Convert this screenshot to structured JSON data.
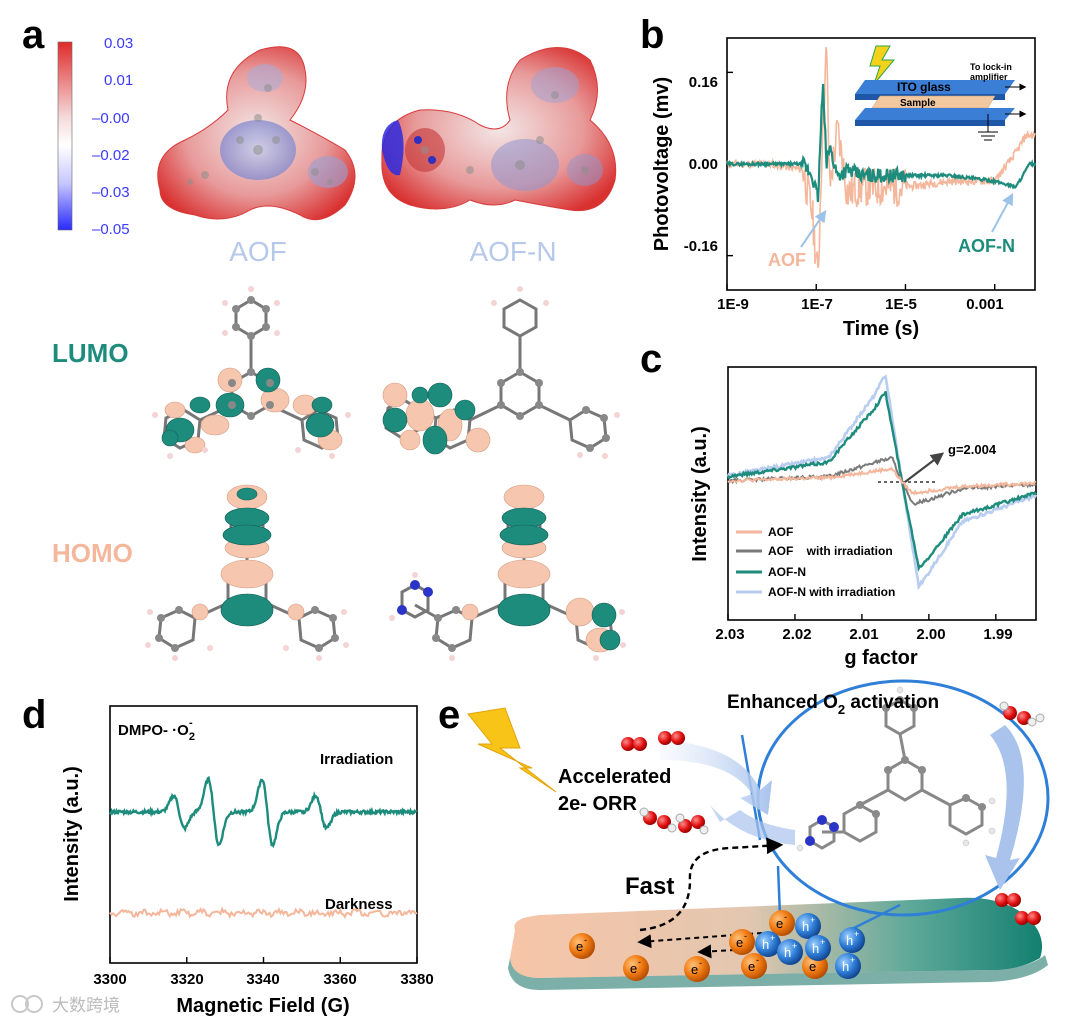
{
  "panels": {
    "a": "a",
    "b": "b",
    "c": "c",
    "d": "d",
    "e": "e"
  },
  "colors": {
    "aof": "#f4b79b",
    "aofn": "#1e8c7d",
    "aof_irr": "#7a7a7a",
    "aofn_irr": "#b9cdf0",
    "orb_teal": "#1e8c7d",
    "orb_peach": "#f7c6ae",
    "text_light_blue": "#b6c9ea",
    "mep_red": "#e02a2a",
    "mep_blue": "#3030ff"
  },
  "panel_a": {
    "colorbar_ticks": [
      "0.03",
      "0.01",
      "–0.00",
      "–0.02",
      "–0.03",
      "–0.05"
    ],
    "mep_labels": [
      "AOF",
      "AOF-N"
    ],
    "orbital_labels": {
      "lumo": "LUMO",
      "homo": "HOMO"
    }
  },
  "panel_b": {
    "ylabel": "Photovoltage (mv)",
    "xlabel": "Time (s)",
    "yticks": [
      "0.16",
      "0.00",
      "-0.16"
    ],
    "xticks": [
      "1E-9",
      "1E-7",
      "1E-5",
      "0.001"
    ],
    "series_labels": {
      "aof": "AOF",
      "aofn": "AOF-N"
    },
    "inset": {
      "ito": "ITO glass",
      "sample": "Sample",
      "lockin": "To lock-in",
      "amplifier": "amplifier"
    }
  },
  "panel_c": {
    "ylabel": "Intensity (a.u.)",
    "xlabel": "g factor",
    "xticks": [
      "2.03",
      "2.02",
      "2.01",
      "2.00",
      "1.99"
    ],
    "annotation": "g=2.004",
    "legend": [
      "AOF",
      "AOF    with irradiation",
      "AOF-N",
      "AOF-N with irradiation"
    ]
  },
  "panel_d": {
    "ylabel": "Intensity (a.u.)",
    "xlabel": "Magnetic Field (G)",
    "xticks": [
      "3300",
      "3320",
      "3340",
      "3360",
      "3380"
    ],
    "title": "DMPO- ·O",
    "title_sub": "2",
    "title_sup": "-",
    "irradiation": "Irradiation",
    "darkness": "Darkness"
  },
  "panel_e": {
    "enhanced": "Enhanced O",
    "enhanced_sub": "2",
    "enhanced_tail": " activation",
    "accelerated": "Accelerated",
    "orr": "2e- ORR",
    "fast": "Fast",
    "electron": "e",
    "electron_sup": "-",
    "hole": "h",
    "hole_sup": "+"
  },
  "watermark": "大数跨境",
  "chart_data": [
    {
      "type": "line",
      "panel": "b",
      "ylabel": "Photovoltage (mv)",
      "xlabel": "Time (s)",
      "xscale": "log",
      "xlim": [
        1e-09,
        0.008
      ],
      "ylim": [
        -0.22,
        0.22
      ],
      "series": [
        {
          "name": "AOF",
          "x": [
            1e-09,
            1e-08,
            5e-08,
            8e-08,
            1.1e-07,
            1.4e-07,
            1.7e-07,
            2e-07,
            3e-07,
            5e-07,
            1e-06,
            1e-05,
            0.0001,
            0.001,
            0.003,
            0.005
          ],
          "y": [
            0.0,
            0.0,
            -0.01,
            -0.08,
            -0.2,
            0.08,
            0.2,
            -0.04,
            0.06,
            -0.05,
            -0.04,
            -0.04,
            -0.03,
            -0.03,
            0.02,
            0.05
          ]
        },
        {
          "name": "AOF-N",
          "x": [
            1e-09,
            1e-08,
            5e-08,
            8e-08,
            1.1e-07,
            1.4e-07,
            1.7e-07,
            2e-07,
            3e-07,
            5e-07,
            1e-06,
            1e-05,
            0.0001,
            0.001,
            0.003,
            0.006
          ],
          "y": [
            0.0,
            0.0,
            0.0,
            -0.02,
            -0.06,
            0.14,
            0.0,
            0.03,
            -0.02,
            -0.01,
            -0.02,
            -0.02,
            -0.02,
            -0.03,
            -0.04,
            0.0
          ]
        }
      ]
    },
    {
      "type": "line",
      "panel": "c",
      "xlabel": "g factor",
      "ylabel": "Intensity (a.u.)",
      "xlim": [
        2.03,
        1.984
      ],
      "series": [
        {
          "name": "AOF",
          "x": [
            2.03,
            2.015,
            2.008,
            2.0055,
            2.004,
            2.0025,
            2.0,
            1.995,
            1.984
          ],
          "y": [
            0.01,
            0.04,
            0.1,
            0.12,
            0.0,
            -0.1,
            -0.08,
            -0.04,
            -0.01
          ]
        },
        {
          "name": "AOF    with irradiation",
          "x": [
            2.03,
            2.015,
            2.008,
            2.0055,
            2.004,
            2.0025,
            2.0,
            1.995,
            1.984
          ],
          "y": [
            0.01,
            0.05,
            0.18,
            0.22,
            0.0,
            -0.2,
            -0.16,
            -0.06,
            -0.02
          ]
        },
        {
          "name": "AOF-N",
          "x": [
            2.03,
            2.015,
            2.008,
            2.0065,
            2.004,
            2.0015,
            2.0,
            1.995,
            1.984
          ],
          "y": [
            0.05,
            0.18,
            0.68,
            0.82,
            0.0,
            -0.78,
            -0.68,
            -0.3,
            -0.1
          ]
        },
        {
          "name": "AOF-N with irradiation",
          "x": [
            2.03,
            2.015,
            2.008,
            2.0065,
            2.004,
            2.0015,
            2.0,
            1.995,
            1.984
          ],
          "y": [
            0.06,
            0.22,
            0.8,
            0.98,
            0.0,
            -0.95,
            -0.82,
            -0.36,
            -0.12
          ]
        }
      ]
    },
    {
      "type": "line",
      "panel": "d",
      "xlabel": "Magnetic Field (G)",
      "ylabel": "Intensity (a.u.)",
      "xlim": [
        3300,
        3380
      ],
      "series": [
        {
          "name": "Irradiation",
          "peaks": [
            3318,
            3327,
            3341,
            3355
          ]
        },
        {
          "name": "Darkness",
          "peaks": []
        }
      ]
    }
  ]
}
